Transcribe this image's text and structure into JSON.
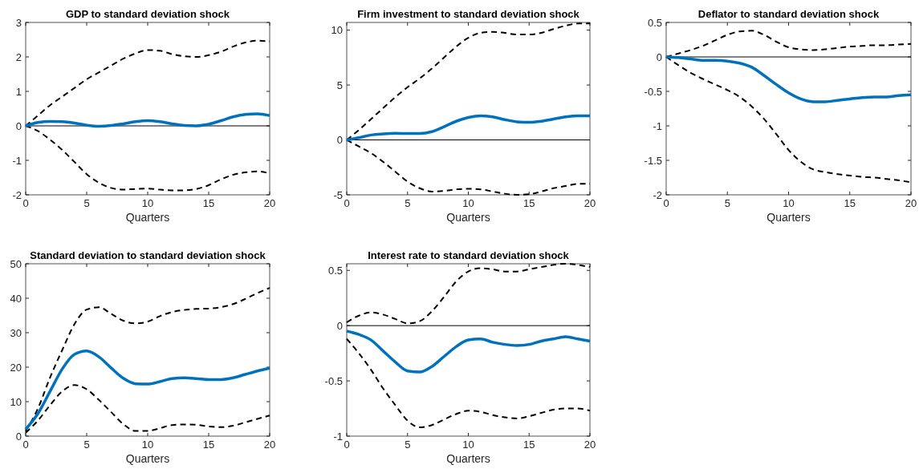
{
  "chart_data": [
    {
      "type": "line",
      "title": "GDP to standard deviation shock",
      "xlabel": "Quarters",
      "x": [
        0,
        1,
        2,
        3,
        4,
        5,
        6,
        7,
        8,
        9,
        10,
        11,
        12,
        13,
        14,
        15,
        16,
        17,
        18,
        19,
        20
      ],
      "xlim": [
        0,
        20
      ],
      "xticks": [
        0,
        5,
        10,
        15,
        20
      ],
      "ylim": [
        -2,
        3
      ],
      "yticks": [
        -2,
        -1,
        0,
        1,
        2,
        3
      ],
      "grid": false,
      "ref_lines": [
        {
          "axis": "y",
          "value": 0,
          "color": "#000000"
        }
      ],
      "series": [
        {
          "color": "#000000",
          "line_style": "dashed",
          "values": [
            0,
            0.3,
            0.6,
            0.85,
            1.1,
            1.35,
            1.55,
            1.75,
            1.95,
            2.1,
            2.2,
            2.18,
            2.08,
            2.02,
            2.0,
            2.05,
            2.15,
            2.3,
            2.42,
            2.47,
            2.45
          ]
        },
        {
          "color": "#000000",
          "line_style": "dashed",
          "values": [
            0,
            -0.15,
            -0.4,
            -0.7,
            -1.05,
            -1.4,
            -1.65,
            -1.8,
            -1.85,
            -1.83,
            -1.82,
            -1.85,
            -1.87,
            -1.87,
            -1.83,
            -1.72,
            -1.55,
            -1.42,
            -1.35,
            -1.32,
            -1.38
          ]
        },
        {
          "color": "#0072bd",
          "line_style": "solid",
          "values": [
            0,
            0.1,
            0.13,
            0.12,
            0.08,
            0.02,
            -0.01,
            0.01,
            0.06,
            0.12,
            0.15,
            0.12,
            0.06,
            0.01,
            0.0,
            0.05,
            0.15,
            0.26,
            0.33,
            0.35,
            0.3
          ]
        }
      ]
    },
    {
      "type": "line",
      "title": "Firm investment to standard deviation shock",
      "xlabel": "Quarters",
      "x": [
        0,
        1,
        2,
        3,
        4,
        5,
        6,
        7,
        8,
        9,
        10,
        11,
        12,
        13,
        14,
        15,
        16,
        17,
        18,
        19,
        20
      ],
      "xlim": [
        0,
        20
      ],
      "xticks": [
        0,
        5,
        10,
        15,
        20
      ],
      "ylim": [
        -5,
        10.7
      ],
      "yticks": [
        -5,
        0,
        5,
        10
      ],
      "grid": false,
      "ref_lines": [
        {
          "axis": "y",
          "value": 0,
          "color": "#000000"
        }
      ],
      "series": [
        {
          "color": "#000000",
          "line_style": "dashed",
          "values": [
            0,
            0.9,
            1.9,
            2.9,
            3.9,
            4.8,
            5.6,
            6.5,
            7.5,
            8.5,
            9.3,
            9.75,
            9.85,
            9.75,
            9.6,
            9.6,
            9.75,
            10.1,
            10.4,
            10.6,
            10.6
          ]
        },
        {
          "color": "#000000",
          "line_style": "dashed",
          "values": [
            0,
            -0.6,
            -1.2,
            -2.0,
            -2.9,
            -3.8,
            -4.4,
            -4.7,
            -4.65,
            -4.5,
            -4.45,
            -4.5,
            -4.7,
            -4.9,
            -5.0,
            -4.95,
            -4.7,
            -4.4,
            -4.2,
            -4.0,
            -4.0
          ]
        },
        {
          "color": "#0072bd",
          "line_style": "solid",
          "values": [
            0,
            0.2,
            0.45,
            0.55,
            0.6,
            0.58,
            0.58,
            0.75,
            1.2,
            1.7,
            2.05,
            2.2,
            2.1,
            1.85,
            1.65,
            1.6,
            1.7,
            1.9,
            2.1,
            2.2,
            2.2
          ]
        }
      ]
    },
    {
      "type": "line",
      "title": "Deflator to standard deviation shock",
      "xlabel": "Quarters",
      "x": [
        0,
        1,
        2,
        3,
        4,
        5,
        6,
        7,
        8,
        9,
        10,
        11,
        12,
        13,
        14,
        15,
        16,
        17,
        18,
        19,
        20
      ],
      "xlim": [
        0,
        20
      ],
      "xticks": [
        0,
        5,
        10,
        15,
        20
      ],
      "ylim": [
        -2,
        0.5
      ],
      "yticks": [
        -2,
        -1.5,
        -1,
        -0.5,
        0,
        0.5
      ],
      "grid": false,
      "ref_lines": [
        {
          "axis": "y",
          "value": 0,
          "color": "#000000"
        }
      ],
      "series": [
        {
          "color": "#000000",
          "line_style": "dashed",
          "values": [
            0,
            0.05,
            0.1,
            0.16,
            0.24,
            0.32,
            0.37,
            0.38,
            0.32,
            0.22,
            0.14,
            0.11,
            0.1,
            0.11,
            0.13,
            0.15,
            0.16,
            0.17,
            0.17,
            0.18,
            0.19
          ]
        },
        {
          "color": "#000000",
          "line_style": "dashed",
          "values": [
            0,
            -0.12,
            -0.23,
            -0.32,
            -0.4,
            -0.48,
            -0.58,
            -0.72,
            -0.9,
            -1.12,
            -1.35,
            -1.52,
            -1.63,
            -1.67,
            -1.7,
            -1.72,
            -1.74,
            -1.75,
            -1.77,
            -1.79,
            -1.82
          ]
        },
        {
          "color": "#0072bd",
          "line_style": "solid",
          "values": [
            0,
            -0.01,
            -0.03,
            -0.05,
            -0.05,
            -0.06,
            -0.09,
            -0.15,
            -0.27,
            -0.4,
            -0.52,
            -0.61,
            -0.65,
            -0.65,
            -0.63,
            -0.61,
            -0.59,
            -0.58,
            -0.58,
            -0.56,
            -0.55
          ]
        }
      ]
    },
    {
      "type": "line",
      "title": "Standard deviation to standard deviation shock",
      "xlabel": "Quarters",
      "x": [
        0,
        1,
        2,
        3,
        4,
        5,
        6,
        7,
        8,
        9,
        10,
        11,
        12,
        13,
        14,
        15,
        16,
        17,
        18,
        19,
        20
      ],
      "xlim": [
        0,
        20
      ],
      "xticks": [
        0,
        5,
        10,
        15,
        20
      ],
      "ylim": [
        0,
        50
      ],
      "yticks": [
        0,
        10,
        20,
        30,
        40,
        50
      ],
      "grid": false,
      "series": [
        {
          "color": "#000000",
          "line_style": "dashed",
          "values": [
            1.5,
            8,
            17,
            25,
            32.5,
            36.7,
            37.4,
            35.5,
            33.5,
            32.7,
            33.2,
            34.8,
            36,
            36.6,
            36.9,
            37,
            37.4,
            38.3,
            39.8,
            41.5,
            43
          ]
        },
        {
          "color": "#000000",
          "line_style": "dashed",
          "values": [
            1,
            4.5,
            9,
            13,
            14.8,
            13.6,
            10.5,
            7,
            3.5,
            1.5,
            1.5,
            2.3,
            3.2,
            3.4,
            3.3,
            2.8,
            2.6,
            3,
            4,
            5,
            6
          ]
        },
        {
          "color": "#0072bd",
          "line_style": "solid",
          "values": [
            2,
            6.5,
            13,
            19.5,
            23.7,
            24.7,
            23,
            19.8,
            16.8,
            15.2,
            15.1,
            15.8,
            16.7,
            16.9,
            16.7,
            16.4,
            16.4,
            16.9,
            17.9,
            18.9,
            19.7
          ]
        }
      ]
    },
    {
      "type": "line",
      "title": "Interest rate to standard deviation shock",
      "xlabel": "Quarters",
      "x": [
        0,
        1,
        2,
        3,
        4,
        5,
        6,
        7,
        8,
        9,
        10,
        11,
        12,
        13,
        14,
        15,
        16,
        17,
        18,
        19,
        20
      ],
      "xlim": [
        0,
        20
      ],
      "xticks": [
        0,
        5,
        10,
        15,
        20
      ],
      "ylim": [
        -1,
        0.56
      ],
      "yticks": [
        -1,
        -0.5,
        0,
        0.5
      ],
      "grid": false,
      "ref_lines": [
        {
          "axis": "y",
          "value": 0,
          "color": "#000000"
        }
      ],
      "series": [
        {
          "color": "#000000",
          "line_style": "dashed",
          "values": [
            0.03,
            0.09,
            0.12,
            0.1,
            0.06,
            0.02,
            0.04,
            0.13,
            0.26,
            0.4,
            0.49,
            0.52,
            0.51,
            0.49,
            0.49,
            0.51,
            0.53,
            0.55,
            0.56,
            0.55,
            0.53
          ]
        },
        {
          "color": "#000000",
          "line_style": "dashed",
          "values": [
            -0.12,
            -0.25,
            -0.4,
            -0.57,
            -0.72,
            -0.86,
            -0.92,
            -0.9,
            -0.85,
            -0.8,
            -0.77,
            -0.78,
            -0.81,
            -0.83,
            -0.84,
            -0.82,
            -0.79,
            -0.76,
            -0.75,
            -0.75,
            -0.77
          ]
        },
        {
          "color": "#0072bd",
          "line_style": "solid",
          "values": [
            -0.05,
            -0.08,
            -0.13,
            -0.23,
            -0.33,
            -0.41,
            -0.42,
            -0.37,
            -0.28,
            -0.19,
            -0.13,
            -0.12,
            -0.15,
            -0.17,
            -0.18,
            -0.17,
            -0.14,
            -0.12,
            -0.1,
            -0.12,
            -0.14
          ]
        }
      ]
    }
  ]
}
